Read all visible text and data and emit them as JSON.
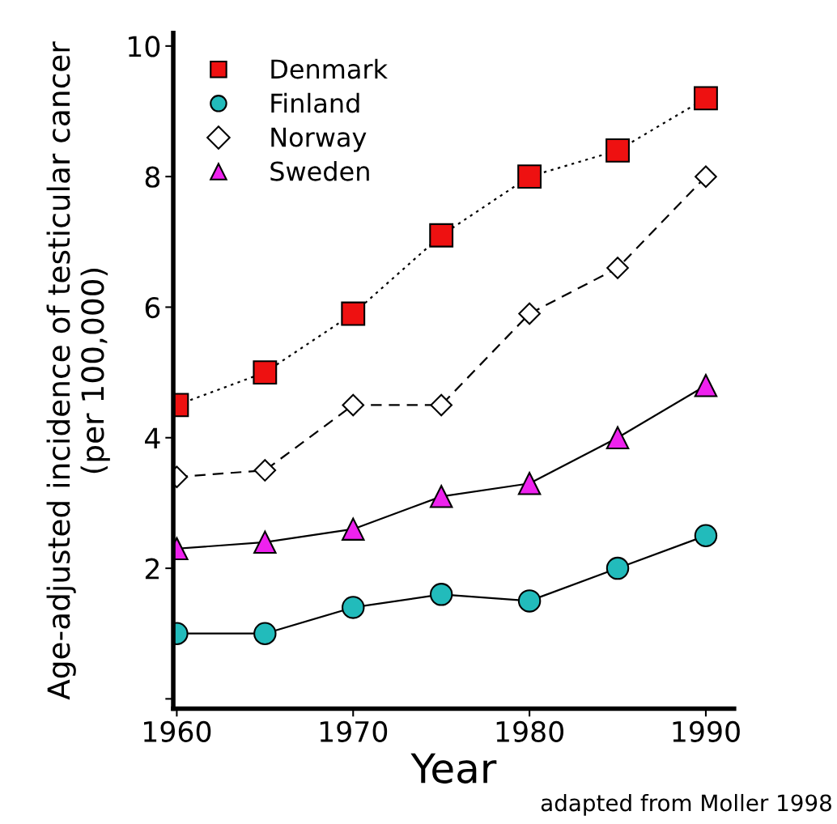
{
  "chart_data": {
    "type": "line",
    "xlabel": "Year",
    "ylabel": "Age-adjusted incidence of testicular cancer\n(per 100,000)",
    "x": [
      1960,
      1965,
      1970,
      1975,
      1980,
      1985,
      1990
    ],
    "series": [
      {
        "name": "Denmark",
        "color": "#ee1111",
        "marker": "square",
        "line_style": "dotted",
        "values": [
          4.5,
          5.0,
          5.9,
          7.1,
          8.0,
          8.4,
          9.2
        ]
      },
      {
        "name": "Finland",
        "color": "#22bbbb",
        "marker": "circle",
        "line_style": "solid",
        "values": [
          1.0,
          1.0,
          1.4,
          1.6,
          1.5,
          2.0,
          2.5
        ]
      },
      {
        "name": "Norway",
        "color": "#ffffff",
        "marker": "diamond",
        "line_style": "dashed",
        "values": [
          3.4,
          3.5,
          4.5,
          4.5,
          5.9,
          6.6,
          8.0
        ]
      },
      {
        "name": "Sweden",
        "color": "#ee22ee",
        "marker": "triangle",
        "line_style": "solid",
        "values": [
          2.3,
          2.4,
          2.6,
          3.1,
          3.3,
          4.0,
          4.8
        ]
      }
    ],
    "xlim": [
      1959.8,
      1991.6
    ],
    "ylim": [
      -0.15,
      10.2
    ],
    "xticks": [
      1960,
      1970,
      1980,
      1990
    ],
    "yticks": [
      {
        "value": 0,
        "label": null
      },
      2,
      4,
      6,
      8,
      10
    ],
    "legend": "top left",
    "grid": false,
    "annotations": [
      "adapted from Moller 1998"
    ]
  }
}
